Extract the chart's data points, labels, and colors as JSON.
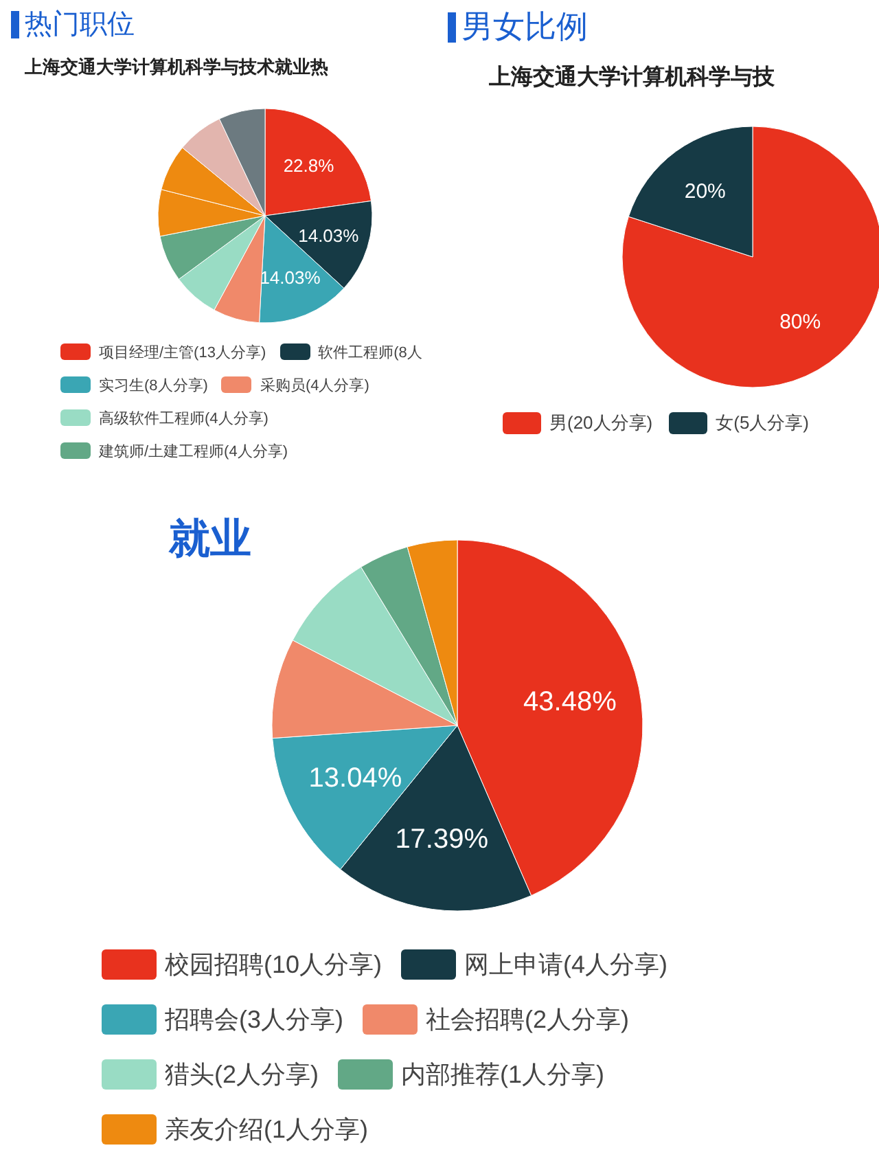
{
  "chart_data": [
    {
      "type": "pie",
      "title": "热门职位",
      "subtitle": "上海交通大学计算机科学与技术就业热",
      "categories": [
        "项目经理/主管(13人分享)",
        "软件工程师(8人",
        "实习生(8人分享)",
        "采购员(4人分享)",
        "高级软件工程师(4人分享)",
        "建筑师/土建工程师(4人分享)",
        null,
        null,
        null,
        null
      ],
      "values": [
        22.8,
        14.03,
        14.03,
        7.02,
        7.02,
        7.02,
        7.02,
        7.02,
        7.02,
        7.02
      ],
      "colors": [
        "#e8321e",
        "#163a45",
        "#3aa6b4",
        "#f0896a",
        "#99dcc4",
        "#62a886",
        "#ee8a10",
        "#ee8a10",
        "#e2b5ae",
        "#6c7a80"
      ],
      "value_labels": [
        "22.8%",
        "14.03%",
        "14.03%",
        null,
        null,
        null,
        null,
        null,
        null,
        null
      ],
      "legend": "bottom"
    },
    {
      "type": "pie",
      "title": "男女比例",
      "subtitle": "上海交通大学计算机科学与技",
      "categories": [
        "男(20人分享)",
        "女(5人分享)"
      ],
      "values": [
        80,
        20
      ],
      "colors": [
        "#e8321e",
        "#163a45"
      ],
      "value_labels": [
        "80%",
        "20%"
      ],
      "legend": "bottom"
    },
    {
      "type": "pie",
      "title": "就业",
      "categories": [
        "校园招聘(10人分享)",
        "网上申请(4人分享)",
        "招聘会(3人分享)",
        "社会招聘(2人分享)",
        "猎头(2人分享)",
        "内部推荐(1人分享)",
        "亲友介绍(1人分享)"
      ],
      "values": [
        43.48,
        17.39,
        13.04,
        8.7,
        8.7,
        4.35,
        4.35
      ],
      "colors": [
        "#e8321e",
        "#163a45",
        "#3aa6b4",
        "#f0896a",
        "#99dcc4",
        "#62a886",
        "#ee8a10"
      ],
      "value_labels": [
        "43.48%",
        "17.39%",
        "13.04%",
        null,
        null,
        null,
        null
      ],
      "legend": "bottom"
    }
  ]
}
